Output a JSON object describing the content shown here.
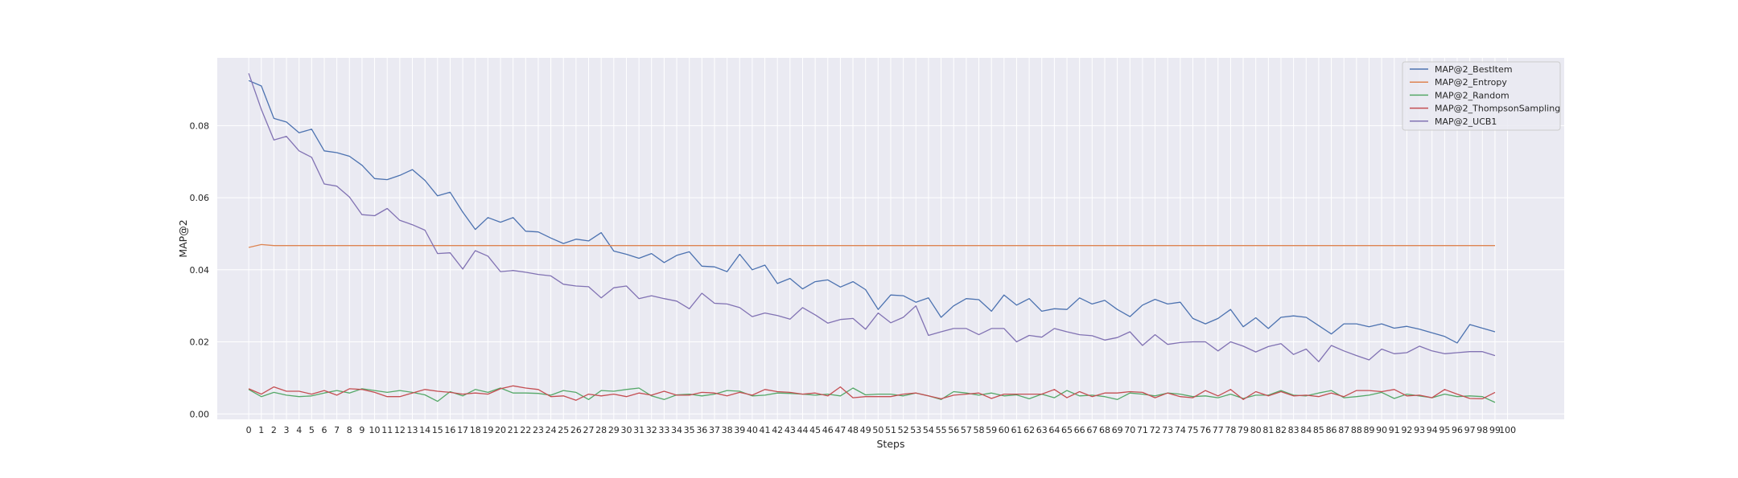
{
  "chart_data": {
    "type": "line",
    "xlabel": "Steps",
    "ylabel": "MAP@2",
    "xlim": [
      -2.5,
      104.5
    ],
    "ylim": [
      -0.0015,
      0.0988
    ],
    "x_ticks": [
      0,
      1,
      2,
      3,
      4,
      5,
      6,
      7,
      8,
      9,
      10,
      11,
      12,
      13,
      14,
      15,
      16,
      17,
      18,
      19,
      20,
      21,
      22,
      23,
      24,
      25,
      26,
      27,
      28,
      29,
      30,
      31,
      32,
      33,
      34,
      35,
      36,
      37,
      38,
      39,
      40,
      41,
      42,
      43,
      44,
      45,
      46,
      47,
      48,
      49,
      50,
      51,
      52,
      53,
      54,
      55,
      56,
      57,
      58,
      59,
      60,
      61,
      62,
      63,
      64,
      65,
      66,
      67,
      68,
      69,
      70,
      71,
      72,
      73,
      74,
      75,
      76,
      77,
      78,
      79,
      80,
      81,
      82,
      83,
      84,
      85,
      86,
      87,
      88,
      89,
      90,
      91,
      92,
      93,
      94,
      95,
      96,
      97,
      98,
      99,
      100
    ],
    "y_ticks": [
      "0.00",
      "0.02",
      "0.04",
      "0.06",
      "0.08"
    ],
    "y_tick_values": [
      0,
      0.02,
      0.04,
      0.06,
      0.08
    ],
    "grid": true,
    "legend_position": "top-right",
    "x": [
      0,
      1,
      2,
      3,
      4,
      5,
      6,
      7,
      8,
      9,
      10,
      11,
      12,
      13,
      14,
      15,
      16,
      17,
      18,
      19,
      20,
      21,
      22,
      23,
      24,
      25,
      26,
      27,
      28,
      29,
      30,
      31,
      32,
      33,
      34,
      35,
      36,
      37,
      38,
      39,
      40,
      41,
      42,
      43,
      44,
      45,
      46,
      47,
      48,
      49,
      50,
      51,
      52,
      53,
      54,
      55,
      56,
      57,
      58,
      59,
      60,
      61,
      62,
      63,
      64,
      65,
      66,
      67,
      68,
      69,
      70,
      71,
      72,
      73,
      74,
      75,
      76,
      77,
      78,
      79,
      80,
      81,
      82,
      83,
      84,
      85,
      86,
      87,
      88,
      89,
      90,
      91,
      92,
      93,
      94,
      95,
      96,
      97,
      98,
      99
    ],
    "series": [
      {
        "name": "MAP@2_BestItem",
        "color": "#4c72b0",
        "values": [
          0.0925,
          0.091,
          0.082,
          0.081,
          0.078,
          0.079,
          0.073,
          0.0725,
          0.0715,
          0.069,
          0.0653,
          0.065,
          0.0662,
          0.0678,
          0.0648,
          0.0605,
          0.0615,
          0.056,
          0.0512,
          0.0545,
          0.0532,
          0.0545,
          0.0507,
          0.0505,
          0.0488,
          0.0473,
          0.0485,
          0.048,
          0.0503,
          0.0452,
          0.0443,
          0.0432,
          0.0445,
          0.042,
          0.044,
          0.045,
          0.041,
          0.0408,
          0.0395,
          0.0443,
          0.04,
          0.0413,
          0.0362,
          0.0376,
          0.0347,
          0.0367,
          0.0372,
          0.0352,
          0.0367,
          0.0345,
          0.029,
          0.033,
          0.0328,
          0.031,
          0.0322,
          0.0268,
          0.03,
          0.032,
          0.0317,
          0.0285,
          0.033,
          0.0302,
          0.032,
          0.0285,
          0.0292,
          0.029,
          0.0322,
          0.0305,
          0.0315,
          0.029,
          0.027,
          0.0302,
          0.0318,
          0.0305,
          0.031,
          0.0265,
          0.025,
          0.0265,
          0.029,
          0.0242,
          0.0267,
          0.0237,
          0.0268,
          0.0272,
          0.0268,
          0.0245,
          0.0222,
          0.025,
          0.025,
          0.0242,
          0.025,
          0.0238,
          0.0243,
          0.0235,
          0.0225,
          0.0215,
          0.0197,
          0.0248,
          0.0238,
          0.0228
        ]
      },
      {
        "name": "MAP@2_Entropy",
        "color": "#dd8452",
        "values": [
          0.0462,
          0.047,
          0.0467,
          0.0467,
          0.0467,
          0.0467,
          0.0467,
          0.0467,
          0.0467,
          0.0467,
          0.0467,
          0.0467,
          0.0467,
          0.0467,
          0.0467,
          0.0467,
          0.0467,
          0.0467,
          0.0467,
          0.0467,
          0.0467,
          0.0467,
          0.0467,
          0.0467,
          0.0467,
          0.0467,
          0.0467,
          0.0467,
          0.0467,
          0.0467,
          0.0467,
          0.0467,
          0.0467,
          0.0467,
          0.0467,
          0.0467,
          0.0467,
          0.0467,
          0.0467,
          0.0467,
          0.0467,
          0.0467,
          0.0467,
          0.0467,
          0.0467,
          0.0467,
          0.0467,
          0.0467,
          0.0467,
          0.0467,
          0.0467,
          0.0467,
          0.0467,
          0.0467,
          0.0467,
          0.0467,
          0.0467,
          0.0467,
          0.0467,
          0.0467,
          0.0467,
          0.0467,
          0.0467,
          0.0467,
          0.0467,
          0.0467,
          0.0467,
          0.0467,
          0.0467,
          0.0467,
          0.0467,
          0.0467,
          0.0467,
          0.0467,
          0.0467,
          0.0467,
          0.0467,
          0.0467,
          0.0467,
          0.0467,
          0.0467,
          0.0467,
          0.0467,
          0.0467,
          0.0467,
          0.0467,
          0.0467,
          0.0467,
          0.0467,
          0.0467,
          0.0467,
          0.0467,
          0.0467,
          0.0467,
          0.0467,
          0.0467,
          0.0467,
          0.0467,
          0.0467,
          0.0467
        ]
      },
      {
        "name": "MAP@2_Random",
        "color": "#55a868",
        "values": [
          0.0068,
          0.0048,
          0.006,
          0.0052,
          0.0048,
          0.005,
          0.0058,
          0.0065,
          0.0058,
          0.007,
          0.0065,
          0.006,
          0.0065,
          0.006,
          0.0053,
          0.0035,
          0.0062,
          0.005,
          0.0068,
          0.006,
          0.0072,
          0.0058,
          0.0058,
          0.0057,
          0.0052,
          0.0065,
          0.006,
          0.004,
          0.0065,
          0.0063,
          0.0068,
          0.0072,
          0.005,
          0.004,
          0.0053,
          0.0055,
          0.005,
          0.0055,
          0.0065,
          0.0063,
          0.005,
          0.0052,
          0.0058,
          0.0057,
          0.0055,
          0.0052,
          0.0055,
          0.005,
          0.0072,
          0.0053,
          0.0055,
          0.0055,
          0.005,
          0.0058,
          0.005,
          0.004,
          0.0062,
          0.0058,
          0.0052,
          0.0058,
          0.005,
          0.0053,
          0.0042,
          0.0055,
          0.0045,
          0.0065,
          0.005,
          0.0052,
          0.0048,
          0.004,
          0.0058,
          0.0055,
          0.005,
          0.0058,
          0.0055,
          0.0048,
          0.005,
          0.0045,
          0.0055,
          0.0043,
          0.0052,
          0.0052,
          0.0065,
          0.0052,
          0.005,
          0.0058,
          0.0065,
          0.0045,
          0.0048,
          0.0052,
          0.006,
          0.0043,
          0.0055,
          0.005,
          0.0045,
          0.0055,
          0.0048,
          0.005,
          0.0048,
          0.0032
        ]
      },
      {
        "name": "MAP@2_ThompsonSampling",
        "color": "#c44e52",
        "values": [
          0.007,
          0.0055,
          0.0075,
          0.0063,
          0.0063,
          0.0055,
          0.0065,
          0.0052,
          0.007,
          0.0068,
          0.006,
          0.0048,
          0.0048,
          0.0058,
          0.0068,
          0.0063,
          0.006,
          0.0055,
          0.0058,
          0.0055,
          0.007,
          0.0078,
          0.0072,
          0.0068,
          0.0048,
          0.005,
          0.0038,
          0.0055,
          0.005,
          0.0055,
          0.0048,
          0.0058,
          0.0052,
          0.0063,
          0.0052,
          0.0052,
          0.006,
          0.0058,
          0.005,
          0.006,
          0.0052,
          0.0068,
          0.0062,
          0.006,
          0.0055,
          0.0058,
          0.005,
          0.0075,
          0.0045,
          0.0048,
          0.0048,
          0.0048,
          0.0055,
          0.0058,
          0.005,
          0.0042,
          0.0052,
          0.0055,
          0.0058,
          0.0043,
          0.0055,
          0.0055,
          0.0055,
          0.0055,
          0.0068,
          0.0045,
          0.0062,
          0.0048,
          0.0058,
          0.0058,
          0.0062,
          0.006,
          0.0045,
          0.0058,
          0.0048,
          0.0045,
          0.0065,
          0.005,
          0.0068,
          0.004,
          0.0062,
          0.005,
          0.0062,
          0.005,
          0.0052,
          0.0048,
          0.0058,
          0.0048,
          0.0065,
          0.0065,
          0.0062,
          0.0068,
          0.005,
          0.0052,
          0.0045,
          0.0068,
          0.0055,
          0.0043,
          0.0042,
          0.006
        ]
      },
      {
        "name": "MAP@2_UCB1",
        "color": "#8172b3",
        "values": [
          0.0945,
          0.0845,
          0.076,
          0.077,
          0.073,
          0.0712,
          0.0638,
          0.0632,
          0.0602,
          0.0553,
          0.055,
          0.057,
          0.0537,
          0.0525,
          0.051,
          0.0445,
          0.0447,
          0.0402,
          0.0453,
          0.0438,
          0.0395,
          0.0398,
          0.0393,
          0.0387,
          0.0383,
          0.036,
          0.0355,
          0.0353,
          0.0322,
          0.035,
          0.0355,
          0.032,
          0.0328,
          0.032,
          0.0313,
          0.0292,
          0.0335,
          0.0307,
          0.0305,
          0.0295,
          0.027,
          0.028,
          0.0273,
          0.0263,
          0.0295,
          0.0275,
          0.0252,
          0.0262,
          0.0265,
          0.0235,
          0.028,
          0.0253,
          0.0268,
          0.03,
          0.0218,
          0.0228,
          0.0237,
          0.0237,
          0.022,
          0.0237,
          0.0237,
          0.02,
          0.0218,
          0.0213,
          0.0237,
          0.0228,
          0.022,
          0.0217,
          0.0205,
          0.0212,
          0.0228,
          0.019,
          0.022,
          0.0193,
          0.0198,
          0.02,
          0.02,
          0.0175,
          0.02,
          0.0188,
          0.0172,
          0.0187,
          0.0195,
          0.0165,
          0.018,
          0.0145,
          0.019,
          0.0175,
          0.0162,
          0.015,
          0.018,
          0.0167,
          0.017,
          0.0188,
          0.0175,
          0.0167,
          0.017,
          0.0173,
          0.0173,
          0.0162
        ]
      }
    ]
  }
}
